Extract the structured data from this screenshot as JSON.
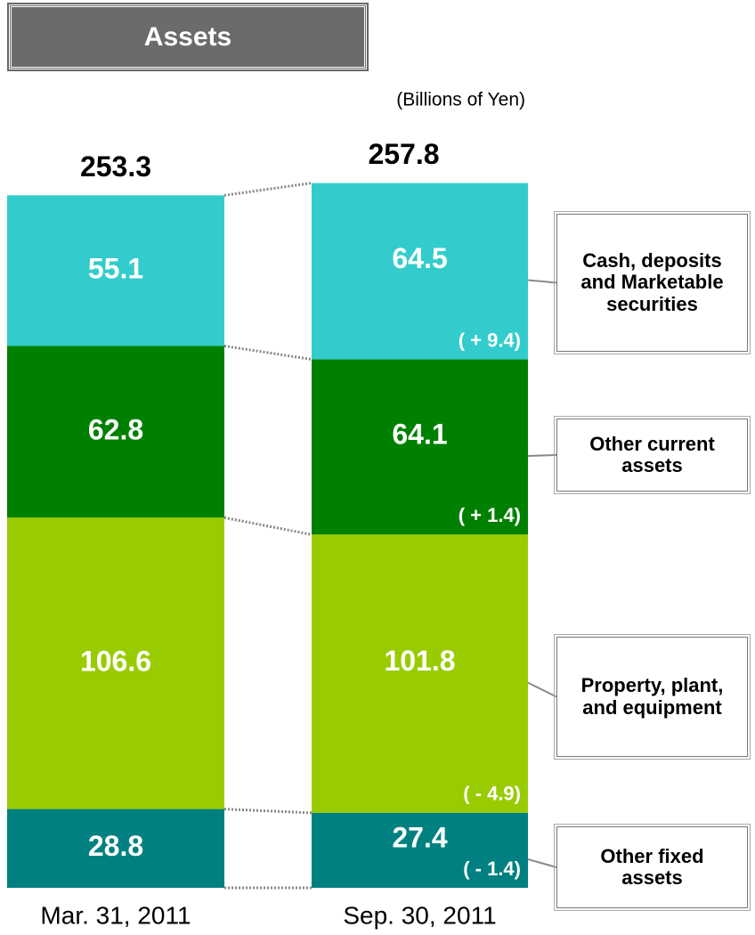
{
  "chart_data": {
    "type": "bar",
    "stacked": true,
    "title": "Assets",
    "subtitle": "(Billions of Yen)",
    "categories": [
      "Mar. 31, 2011",
      "Sep. 30, 2011"
    ],
    "totals": [
      253.3,
      257.8
    ],
    "series": [
      {
        "name": "Cash, deposits and Marketable securities",
        "color": "#33cccc",
        "values": [
          55.1,
          64.5
        ],
        "change": 9.4,
        "change_label": "( + 9.4)"
      },
      {
        "name": "Other current assets",
        "color": "#008000",
        "values": [
          62.8,
          64.1
        ],
        "change": 1.4,
        "change_label": "( + 1.4)"
      },
      {
        "name": "Property, plant, and equipment",
        "color": "#99cc00",
        "values": [
          106.6,
          101.8
        ],
        "change": -4.9,
        "change_label": "( - 4.9)"
      },
      {
        "name": "Other fixed assets",
        "color": "#008080",
        "values": [
          28.8,
          27.4
        ],
        "change": -1.4,
        "change_label": "( - 1.4)"
      }
    ]
  }
}
